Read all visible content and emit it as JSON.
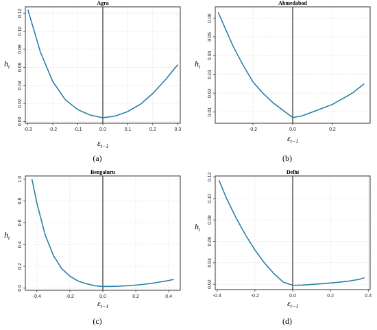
{
  "chart_data": [
    {
      "type": "line",
      "title": "Agra",
      "caption": "(a)",
      "xlabel": {
        "main": "ε",
        "sub": "t−1"
      },
      "ylabel": {
        "main": "h",
        "sub": "t"
      },
      "xlim": [
        -0.31,
        0.31
      ],
      "ylim": [
        -0.002,
        0.127
      ],
      "xticks": [
        -0.3,
        -0.2,
        -0.1,
        0.0,
        0.1,
        0.2,
        0.3
      ],
      "xticklabels": [
        "-0.3",
        "-0.2",
        "-0.1",
        "0.0",
        "0.1",
        "0.2",
        "0.3"
      ],
      "yticks": [
        0.0,
        0.02,
        0.04,
        0.06,
        0.08,
        0.1,
        0.12
      ],
      "yticklabels": [
        "0.00",
        "0.02",
        "0.04",
        "0.06",
        "0.08",
        "0.10",
        "0.12"
      ],
      "grid": true,
      "series": [
        {
          "color": "#2a7fa8",
          "x": [
            -0.3,
            -0.25,
            -0.2,
            -0.15,
            -0.1,
            -0.05,
            0.0,
            0.05,
            0.1,
            0.15,
            0.2,
            0.25,
            0.3
          ],
          "y": [
            0.124,
            0.077,
            0.044,
            0.024,
            0.013,
            0.007,
            0.004,
            0.006,
            0.011,
            0.019,
            0.031,
            0.046,
            0.063
          ]
        }
      ]
    },
    {
      "type": "line",
      "title": "Ahmedabad",
      "caption": "(b)",
      "xlabel": {
        "main": "ε",
        "sub": "t−1"
      },
      "ylabel": {
        "main": "h",
        "sub": "t"
      },
      "xlim": [
        -0.39,
        0.39
      ],
      "ylim": [
        0.004,
        0.066
      ],
      "xticks": [
        -0.2,
        0.0,
        0.2
      ],
      "xticklabels": [
        "-0.2",
        "0.0",
        "0.2"
      ],
      "yticks": [
        0.01,
        0.02,
        0.03,
        0.04,
        0.05,
        0.06
      ],
      "yticklabels": [
        "0.01",
        "0.02",
        "0.03",
        "0.04",
        "0.05",
        "0.06"
      ],
      "grid": true,
      "series": [
        {
          "color": "#2a7fa8",
          "x": [
            -0.375,
            -0.3,
            -0.25,
            -0.2,
            -0.15,
            -0.1,
            -0.05,
            0.0,
            0.05,
            0.1,
            0.15,
            0.2,
            0.25,
            0.3,
            0.36
          ],
          "y": [
            0.063,
            0.045,
            0.035,
            0.026,
            0.02,
            0.015,
            0.011,
            0.007,
            0.008,
            0.01,
            0.012,
            0.014,
            0.017,
            0.02,
            0.025
          ]
        }
      ]
    },
    {
      "type": "line",
      "title": "Bengaluru",
      "caption": "(c)",
      "xlabel": {
        "main": "ε",
        "sub": "t−1"
      },
      "ylabel": {
        "main": "h",
        "sub": "t"
      },
      "xlim": [
        -0.47,
        0.47
      ],
      "ylim": [
        -0.02,
        1.03
      ],
      "xticks": [
        -0.4,
        -0.2,
        0.0,
        0.2,
        0.4
      ],
      "xticklabels": [
        "-0.4",
        "-0.2",
        "0.0",
        "0.2",
        "0.4"
      ],
      "yticks": [
        0.0,
        0.2,
        0.4,
        0.6,
        0.8,
        1.0
      ],
      "yticklabels": [
        "0.0",
        "0.2",
        "0.4",
        "0.6",
        "0.8",
        "1.0"
      ],
      "grid": true,
      "series": [
        {
          "color": "#2a7fa8",
          "x": [
            -0.43,
            -0.4,
            -0.35,
            -0.3,
            -0.25,
            -0.2,
            -0.15,
            -0.1,
            -0.05,
            0.0,
            0.05,
            0.1,
            0.15,
            0.2,
            0.25,
            0.3,
            0.35,
            0.4,
            0.43
          ],
          "y": [
            1.0,
            0.78,
            0.49,
            0.3,
            0.18,
            0.11,
            0.065,
            0.04,
            0.022,
            0.015,
            0.016,
            0.018,
            0.022,
            0.028,
            0.035,
            0.045,
            0.057,
            0.07,
            0.08
          ]
        }
      ]
    },
    {
      "type": "line",
      "title": "Delhi",
      "caption": "(d)",
      "xlabel": {
        "main": "ε",
        "sub": "t−1"
      },
      "ylabel": {
        "main": "h",
        "sub": "t"
      },
      "xlim": [
        -0.41,
        0.41
      ],
      "ylim": [
        0.015,
        0.121
      ],
      "xticks": [
        -0.4,
        -0.2,
        0.0,
        0.2,
        0.4
      ],
      "xticklabels": [
        "-0.4",
        "-0.2",
        "0.0",
        "0.2",
        "0.4"
      ],
      "yticks": [
        0.02,
        0.04,
        0.06,
        0.08,
        0.1,
        0.12
      ],
      "yticklabels": [
        "0.02",
        "0.04",
        "0.06",
        "0.08",
        "0.10",
        "0.12"
      ],
      "grid": true,
      "series": [
        {
          "color": "#2a7fa8",
          "x": [
            -0.39,
            -0.35,
            -0.3,
            -0.25,
            -0.2,
            -0.15,
            -0.1,
            -0.05,
            0.0,
            0.05,
            0.1,
            0.15,
            0.2,
            0.25,
            0.3,
            0.35,
            0.38
          ],
          "y": [
            0.117,
            0.1,
            0.082,
            0.066,
            0.052,
            0.04,
            0.03,
            0.022,
            0.019,
            0.0192,
            0.0198,
            0.0205,
            0.0212,
            0.022,
            0.023,
            0.0245,
            0.026
          ]
        }
      ]
    }
  ]
}
